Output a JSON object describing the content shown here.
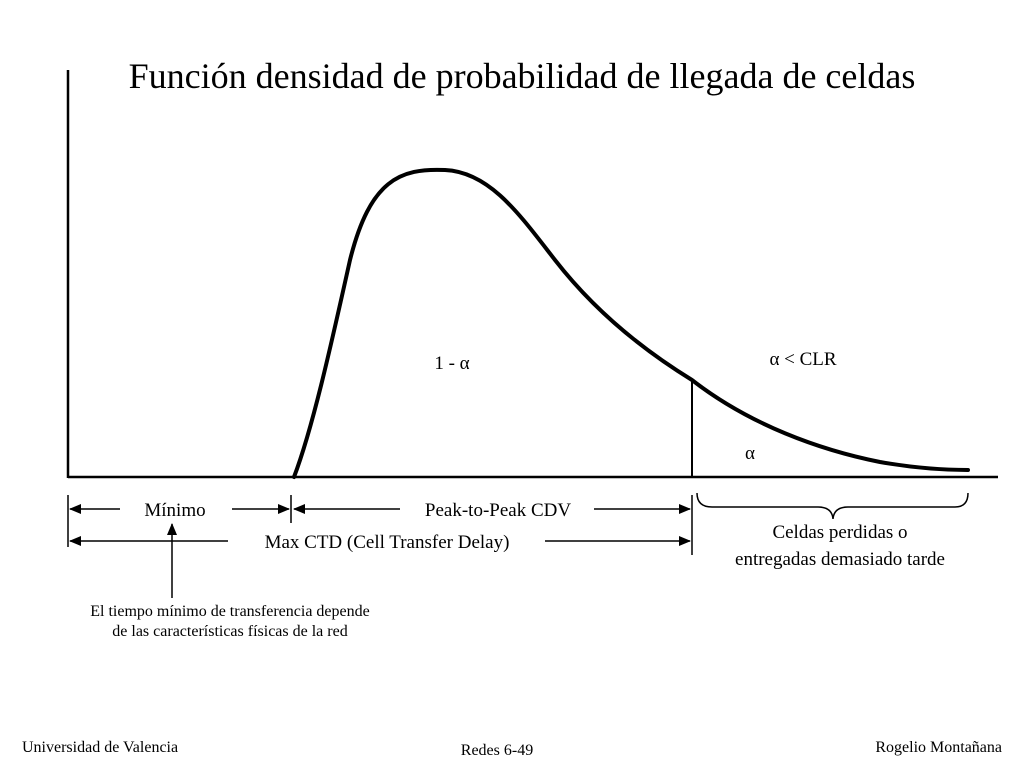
{
  "title": "Función densidad de probabilidad de llegada de celdas",
  "labels": {
    "main_area": "1 - α",
    "alpha_condition": "α < CLR",
    "tail_area": "α"
  },
  "axis_annotations": {
    "minimum": "Mínimo",
    "peak_to_peak": "Peak-to-Peak CDV",
    "max_ctd": "Max CTD (Cell Transfer Delay)",
    "lost_cells_line1": "Celdas perdidas o",
    "lost_cells_line2": "entregadas demasiado tarde"
  },
  "note": {
    "line1": "El tiempo mínimo de transferencia depende",
    "line2": "de las características físicas de la red"
  },
  "footer": {
    "left": "Universidad de Valencia",
    "center": "Redes 6-49",
    "right": "Rogelio Montañana"
  }
}
